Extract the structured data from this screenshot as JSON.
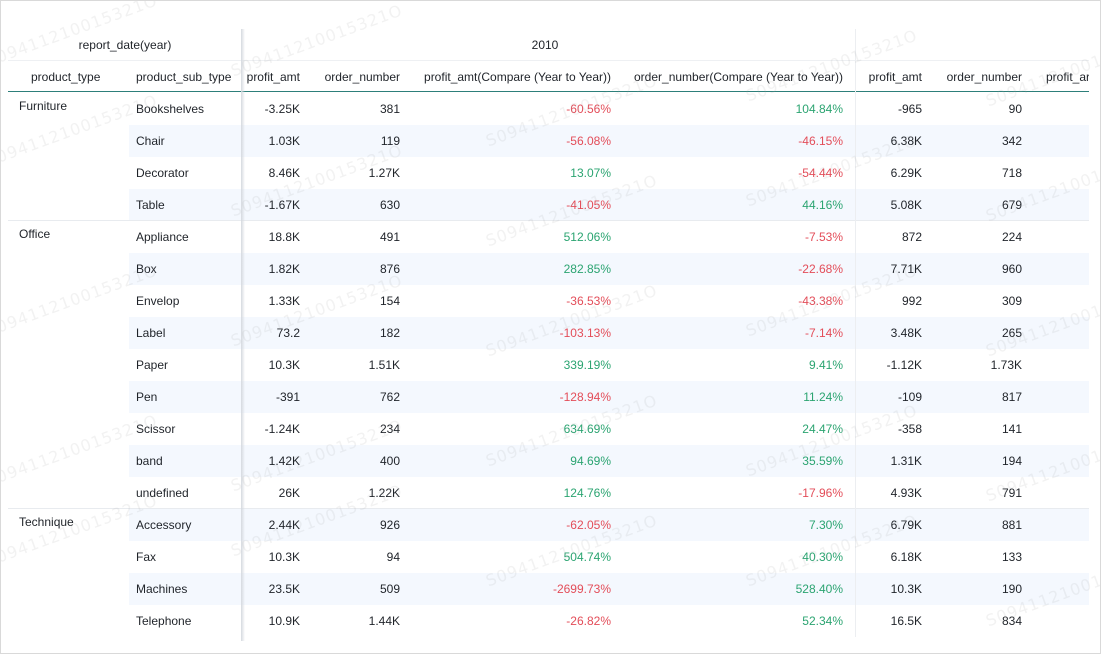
{
  "header": {
    "corner_label": "report_date(year)",
    "year_label": "2010",
    "row_dim_headers": [
      "product_type",
      "product_sub_type"
    ],
    "measure_headers": [
      "profit_amt",
      "order_number",
      "profit_amt(Compare (Year to Year))",
      "order_number(Compare (Year to Year))",
      "profit_amt",
      "order_number",
      "profit_ar"
    ]
  },
  "groups": [
    {
      "name": "Furniture",
      "rows": [
        {
          "sub": "Bookshelves",
          "profit": "-3.25K",
          "orders": "381",
          "profit_cmp": "-60.56%",
          "orders_cmp": "104.84%",
          "profit_next": "-965",
          "orders_next": "90"
        },
        {
          "sub": "Chair",
          "profit": "1.03K",
          "orders": "119",
          "profit_cmp": "-56.08%",
          "orders_cmp": "-46.15%",
          "profit_next": "6.38K",
          "orders_next": "342"
        },
        {
          "sub": "Decorator",
          "profit": "8.46K",
          "orders": "1.27K",
          "profit_cmp": "13.07%",
          "orders_cmp": "-54.44%",
          "profit_next": "6.29K",
          "orders_next": "718"
        },
        {
          "sub": "Table",
          "profit": "-1.67K",
          "orders": "630",
          "profit_cmp": "-41.05%",
          "orders_cmp": "44.16%",
          "profit_next": "5.08K",
          "orders_next": "679"
        }
      ]
    },
    {
      "name": "Office",
      "rows": [
        {
          "sub": "Appliance",
          "profit": "18.8K",
          "orders": "491",
          "profit_cmp": "512.06%",
          "orders_cmp": "-7.53%",
          "profit_next": "872",
          "orders_next": "224"
        },
        {
          "sub": "Box",
          "profit": "1.82K",
          "orders": "876",
          "profit_cmp": "282.85%",
          "orders_cmp": "-22.68%",
          "profit_next": "7.71K",
          "orders_next": "960"
        },
        {
          "sub": "Envelop",
          "profit": "1.33K",
          "orders": "154",
          "profit_cmp": "-36.53%",
          "orders_cmp": "-43.38%",
          "profit_next": "992",
          "orders_next": "309"
        },
        {
          "sub": "Label",
          "profit": "73.2",
          "orders": "182",
          "profit_cmp": "-103.13%",
          "orders_cmp": "-7.14%",
          "profit_next": "3.48K",
          "orders_next": "265"
        },
        {
          "sub": "Paper",
          "profit": "10.3K",
          "orders": "1.51K",
          "profit_cmp": "339.19%",
          "orders_cmp": "9.41%",
          "profit_next": "-1.12K",
          "orders_next": "1.73K"
        },
        {
          "sub": "Pen",
          "profit": "-391",
          "orders": "762",
          "profit_cmp": "-128.94%",
          "orders_cmp": "11.24%",
          "profit_next": "-109",
          "orders_next": "817"
        },
        {
          "sub": "Scissor",
          "profit": "-1.24K",
          "orders": "234",
          "profit_cmp": "634.69%",
          "orders_cmp": "24.47%",
          "profit_next": "-358",
          "orders_next": "141"
        },
        {
          "sub": "band",
          "profit": "1.42K",
          "orders": "400",
          "profit_cmp": "94.69%",
          "orders_cmp": "35.59%",
          "profit_next": "1.31K",
          "orders_next": "194"
        },
        {
          "sub": "undefined",
          "profit": "26K",
          "orders": "1.22K",
          "profit_cmp": "124.76%",
          "orders_cmp": "-17.96%",
          "profit_next": "4.93K",
          "orders_next": "791"
        }
      ]
    },
    {
      "name": "Technique",
      "rows": [
        {
          "sub": "Accessory",
          "profit": "2.44K",
          "orders": "926",
          "profit_cmp": "-62.05%",
          "orders_cmp": "7.30%",
          "profit_next": "6.79K",
          "orders_next": "881"
        },
        {
          "sub": "Fax",
          "profit": "10.3K",
          "orders": "94",
          "profit_cmp": "504.74%",
          "orders_cmp": "40.30%",
          "profit_next": "6.18K",
          "orders_next": "133"
        },
        {
          "sub": "Machines",
          "profit": "23.5K",
          "orders": "509",
          "profit_cmp": "-2699.73%",
          "orders_cmp": "528.40%",
          "profit_next": "10.3K",
          "orders_next": "190"
        },
        {
          "sub": "Telephone",
          "profit": "10.9K",
          "orders": "1.44K",
          "profit_cmp": "-26.82%",
          "orders_cmp": "52.34%",
          "profit_next": "16.5K",
          "orders_next": "834"
        }
      ]
    }
  ],
  "watermark_text": "S09411210015321O",
  "colors": {
    "negative": "#e34d59",
    "positive": "#2ba471",
    "stripe": "#f4f8fe",
    "header_line": "#2d7f7a"
  }
}
